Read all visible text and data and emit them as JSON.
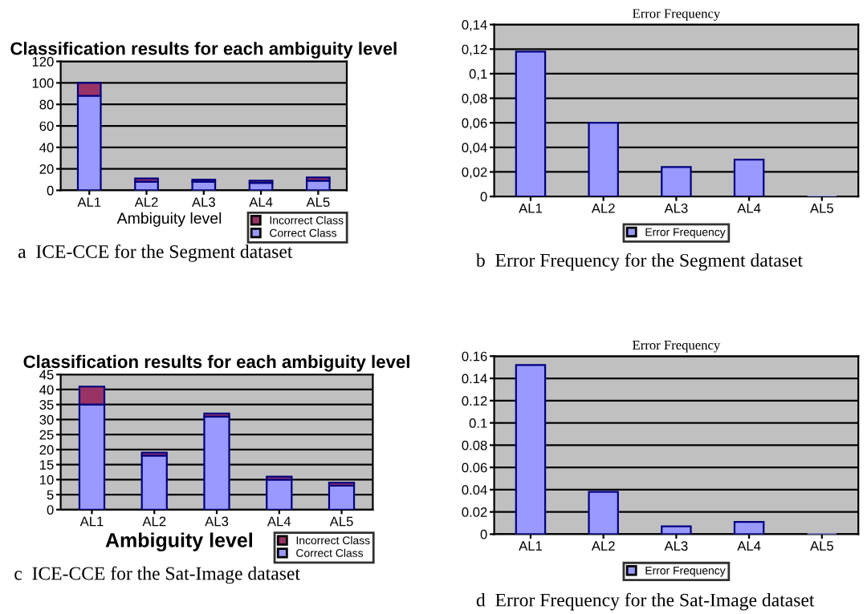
{
  "chart_data": [
    {
      "type": "bar",
      "title": "Classification results for each ambiguity level",
      "xlabel": "Ambiguity level",
      "categories": [
        "AL1",
        "AL2",
        "AL3",
        "AL4",
        "AL5"
      ],
      "stacked": true,
      "series": [
        {
          "name": "Correct Class",
          "color": "#9999ff",
          "values": [
            88,
            8,
            8,
            7,
            9
          ]
        },
        {
          "name": "Incorrect Class",
          "color": "#993366",
          "values": [
            12,
            3,
            2,
            2,
            3
          ]
        }
      ],
      "ylim": [
        0,
        120
      ],
      "yticks": [
        0,
        20,
        40,
        60,
        80,
        100,
        120
      ],
      "grid": "y",
      "legend": "bottom right",
      "annotations": [
        "a  ICE-CCE for the Segment dataset"
      ]
    },
    {
      "type": "bar",
      "title": "Error Frequency",
      "categories": [
        "AL1",
        "AL2",
        "AL3",
        "AL4",
        "AL5"
      ],
      "series": [
        {
          "name": "Error Frequency",
          "color": "#9999ff",
          "values": [
            0.118,
            0.06,
            0.024,
            0.03,
            0
          ]
        }
      ],
      "ylim": [
        0,
        0.14
      ],
      "yticks": [
        0,
        {
          "value": 0.02,
          "label": "0,02"
        },
        {
          "value": 0.04,
          "label": "0,04"
        },
        {
          "value": 0.06,
          "label": "0,06"
        },
        {
          "value": 0.08,
          "label": "0,08"
        },
        {
          "value": 0.1,
          "label": "0,1"
        },
        {
          "value": 0.12,
          "label": "0,12"
        },
        {
          "value": 0.14,
          "label": "0,14"
        }
      ],
      "grid": "y",
      "legend": "bottom",
      "annotations": [
        "b  Error Frequency for the Segment dataset"
      ]
    },
    {
      "type": "bar",
      "title": "Classification results for each ambiguity level",
      "xlabel": "Ambiguity level",
      "categories": [
        "AL1",
        "AL2",
        "AL3",
        "AL4",
        "AL5"
      ],
      "stacked": true,
      "series": [
        {
          "name": "Correct Class",
          "color": "#9999ff",
          "values": [
            35,
            18,
            31,
            10,
            8
          ]
        },
        {
          "name": "Incorrect Class",
          "color": "#993366",
          "values": [
            6,
            1,
            1,
            1,
            1
          ]
        }
      ],
      "ylim": [
        0,
        45
      ],
      "yticks": [
        0,
        5,
        10,
        15,
        20,
        25,
        30,
        35,
        40,
        45
      ],
      "grid": "y",
      "legend": "bottom right",
      "annotations": [
        "c  ICE-CCE for the Sat-Image dataset"
      ]
    },
    {
      "type": "bar",
      "title": "Error Frequency",
      "categories": [
        "AL1",
        "AL2",
        "AL3",
        "AL4",
        "AL5"
      ],
      "series": [
        {
          "name": "Error Frequency",
          "color": "#9999ff",
          "values": [
            0.152,
            0.038,
            0.007,
            0.011,
            0
          ]
        }
      ],
      "ylim": [
        0,
        0.16
      ],
      "yticks": [
        0,
        0.02,
        0.04,
        0.06,
        0.08,
        0.1,
        0.12,
        0.14,
        0.16
      ],
      "grid": "y",
      "legend": "bottom",
      "annotations": [
        "d  Error Frequency for the Sat-Image dataset"
      ]
    }
  ]
}
